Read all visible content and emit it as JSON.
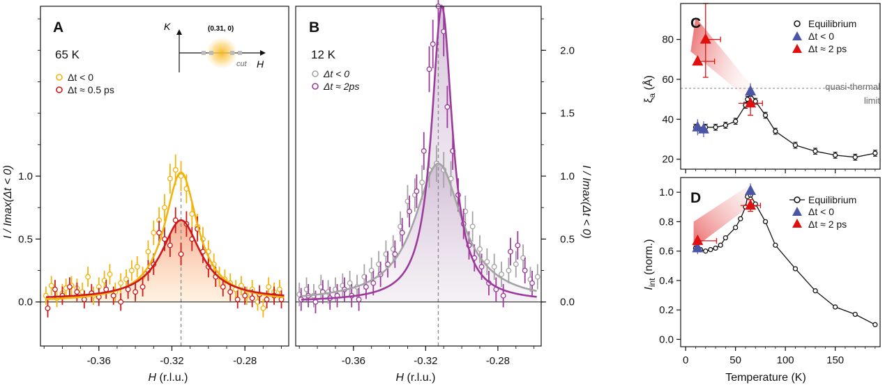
{
  "colors": {
    "yellow": "#f2b30a",
    "red": "#cf1717",
    "purple": "#9c3a9c",
    "gray": "#a3a3a3",
    "blue": "#4b55a6",
    "tri_red": "#e01010",
    "black": "#111111"
  },
  "chart_data": [
    {
      "id": "A",
      "type": "scatter",
      "panel_label": "A",
      "temperature_label": "65 K",
      "xlabel_var": "H",
      "xlabel_unit": " (r.l.u.)",
      "ylabel": "I / Imax(Δt < 0)",
      "xlim": [
        -0.392,
        -0.256
      ],
      "ylim": [
        -0.35,
        2.35
      ],
      "xticks": [
        -0.36,
        -0.32,
        -0.28
      ],
      "xtick_labels": [
        "-0.36",
        "-0.32",
        "-0.28"
      ],
      "yticks": [
        0.0,
        0.5,
        1.0
      ],
      "ytick_labels": [
        "0.0",
        "0.5",
        "1.0"
      ],
      "center_line_x": -0.315,
      "inset": {
        "k_label": "K",
        "h_label": "H",
        "point_label": "(0.31, 0)",
        "cut_label": "cut"
      },
      "legend": [
        "Δt < 0",
        "Δt ≈ 0.5 ps"
      ],
      "series": [
        {
          "name": "Δt < 0",
          "color_key": "yellow",
          "fit_amp": 1.03,
          "fit_center": -0.315,
          "fit_width": 0.011,
          "fit_bg": 0.0,
          "fill": false,
          "points": [
            [
              -0.389,
              0.05
            ],
            [
              -0.386,
              0.13
            ],
            [
              -0.383,
              0.03
            ],
            [
              -0.38,
              0.07
            ],
            [
              -0.378,
              0.11
            ],
            [
              -0.375,
              0.13
            ],
            [
              -0.372,
              0.11
            ],
            [
              -0.369,
              0.08
            ],
            [
              -0.366,
              0.2
            ],
            [
              -0.363,
              0.05
            ],
            [
              -0.36,
              0.12
            ],
            [
              -0.357,
              0.17
            ],
            [
              -0.354,
              0.22
            ],
            [
              -0.351,
              0.08
            ],
            [
              -0.348,
              0.15
            ],
            [
              -0.345,
              0.18
            ],
            [
              -0.342,
              0.25
            ],
            [
              -0.339,
              0.28
            ],
            [
              -0.336,
              0.2
            ],
            [
              -0.333,
              0.4
            ],
            [
              -0.33,
              0.55
            ],
            [
              -0.327,
              0.65
            ],
            [
              -0.324,
              0.75
            ],
            [
              -0.321,
              0.98
            ],
            [
              -0.318,
              1.05
            ],
            [
              -0.315,
              1.0
            ],
            [
              -0.312,
              0.9
            ],
            [
              -0.309,
              0.7
            ],
            [
              -0.306,
              0.6
            ],
            [
              -0.303,
              0.5
            ],
            [
              -0.3,
              0.4
            ],
            [
              -0.297,
              0.3
            ],
            [
              -0.294,
              0.2
            ],
            [
              -0.291,
              0.18
            ],
            [
              -0.288,
              0.15
            ],
            [
              -0.285,
              0.1
            ],
            [
              -0.282,
              0.13
            ],
            [
              -0.279,
              0.05
            ],
            [
              -0.276,
              0.1
            ],
            [
              -0.273,
              0.0
            ],
            [
              -0.27,
              -0.05
            ],
            [
              -0.267,
              0.12
            ],
            [
              -0.264,
              0.08
            ],
            [
              -0.261,
              0.1
            ]
          ]
        },
        {
          "name": "Δt ≈ 0.5 ps",
          "color_key": "red",
          "fit_amp": 0.63,
          "fit_center": -0.315,
          "fit_width": 0.013,
          "fit_bg": 0.02,
          "fill": true,
          "points": [
            [
              -0.388,
              -0.05
            ],
            [
              -0.384,
              0.1
            ],
            [
              -0.38,
              0.05
            ],
            [
              -0.376,
              0.12
            ],
            [
              -0.372,
              0.08
            ],
            [
              -0.368,
              0.02
            ],
            [
              -0.364,
              0.07
            ],
            [
              -0.36,
              0.04
            ],
            [
              -0.356,
              0.1
            ],
            [
              -0.352,
              0.05
            ],
            [
              -0.348,
              0.0
            ],
            [
              -0.344,
              0.1
            ],
            [
              -0.34,
              0.08
            ],
            [
              -0.336,
              0.12
            ],
            [
              -0.333,
              0.25
            ],
            [
              -0.33,
              0.3
            ],
            [
              -0.327,
              0.55
            ],
            [
              -0.324,
              0.5
            ],
            [
              -0.321,
              0.45
            ],
            [
              -0.318,
              0.65
            ],
            [
              -0.315,
              0.38
            ],
            [
              -0.312,
              0.62
            ],
            [
              -0.309,
              0.5
            ],
            [
              -0.306,
              0.58
            ],
            [
              -0.303,
              0.4
            ],
            [
              -0.3,
              0.28
            ],
            [
              -0.296,
              0.2
            ],
            [
              -0.292,
              0.12
            ],
            [
              -0.288,
              0.08
            ],
            [
              -0.284,
              0.02
            ],
            [
              -0.28,
              0.05
            ],
            [
              -0.276,
              0.03
            ],
            [
              -0.272,
              0.06
            ],
            [
              -0.268,
              0.02
            ],
            [
              -0.264,
              0.05
            ],
            [
              -0.26,
              0.02
            ]
          ]
        }
      ]
    },
    {
      "id": "B",
      "type": "scatter",
      "panel_label": "B",
      "temperature_label": "12 K",
      "xlabel_var": "H",
      "xlabel_unit": " (r.l.u.)",
      "ylabel": "I / Imax(Δt < 0)",
      "xlim": [
        -0.392,
        -0.256
      ],
      "ylim": [
        -0.35,
        2.35
      ],
      "xticks": [
        -0.36,
        -0.32,
        -0.28
      ],
      "xtick_labels": [
        "-0.36",
        "-0.32",
        "-0.28"
      ],
      "yticks": [
        0.0,
        0.5,
        1.0,
        1.5,
        2.0
      ],
      "ytick_labels": [
        "0.0",
        "0.5",
        "1.0",
        "1.5",
        "2.0"
      ],
      "center_line_x": -0.313,
      "legend": [
        "Δt < 0",
        "Δt ≈ 2ps"
      ],
      "series": [
        {
          "name": "Δt < 0",
          "color_key": "gray",
          "fit_amp": 1.1,
          "fit_center": -0.313,
          "fit_width": 0.016,
          "fit_bg": 0.0,
          "fill": true,
          "points": [
            [
              -0.39,
              0.06
            ],
            [
              -0.386,
              0.1
            ],
            [
              -0.382,
              0.05
            ],
            [
              -0.378,
              0.12
            ],
            [
              -0.374,
              0.08
            ],
            [
              -0.37,
              0.1
            ],
            [
              -0.366,
              0.13
            ],
            [
              -0.362,
              0.15
            ],
            [
              -0.358,
              0.12
            ],
            [
              -0.354,
              0.2
            ],
            [
              -0.35,
              0.25
            ],
            [
              -0.346,
              0.3
            ],
            [
              -0.342,
              0.38
            ],
            [
              -0.338,
              0.42
            ],
            [
              -0.334,
              0.6
            ],
            [
              -0.33,
              0.8
            ],
            [
              -0.326,
              0.85
            ],
            [
              -0.322,
              0.95
            ],
            [
              -0.318,
              1.05
            ],
            [
              -0.314,
              1.1
            ],
            [
              -0.31,
              1.05
            ],
            [
              -0.306,
              0.98
            ],
            [
              -0.302,
              0.85
            ],
            [
              -0.298,
              0.72
            ],
            [
              -0.294,
              0.6
            ],
            [
              -0.29,
              0.42
            ],
            [
              -0.286,
              0.32
            ],
            [
              -0.282,
              0.28
            ],
            [
              -0.278,
              0.22
            ],
            [
              -0.274,
              0.25
            ],
            [
              -0.27,
              0.3
            ],
            [
              -0.266,
              0.35
            ],
            [
              -0.262,
              0.18
            ],
            [
              -0.258,
              0.2
            ]
          ]
        },
        {
          "name": "Δt ≈ 2ps",
          "color_key": "purple",
          "fit_amp": 2.35,
          "fit_center": -0.311,
          "fit_width": 0.007,
          "fit_bg": 0.0,
          "fill": true,
          "points": [
            [
              -0.389,
              0.02
            ],
            [
              -0.385,
              0.05
            ],
            [
              -0.381,
              0.0
            ],
            [
              -0.377,
              0.08
            ],
            [
              -0.373,
              0.03
            ],
            [
              -0.369,
              0.05
            ],
            [
              -0.365,
              0.1
            ],
            [
              -0.361,
              0.05
            ],
            [
              -0.357,
              0.02
            ],
            [
              -0.353,
              0.12
            ],
            [
              -0.349,
              0.15
            ],
            [
              -0.345,
              0.22
            ],
            [
              -0.341,
              0.3
            ],
            [
              -0.337,
              0.38
            ],
            [
              -0.333,
              0.55
            ],
            [
              -0.329,
              0.72
            ],
            [
              -0.325,
              0.88
            ],
            [
              -0.321,
              1.2
            ],
            [
              -0.318,
              1.85
            ],
            [
              -0.316,
              2.05
            ],
            [
              -0.313,
              2.35
            ],
            [
              -0.31,
              2.15
            ],
            [
              -0.308,
              1.55
            ],
            [
              -0.305,
              1.2
            ],
            [
              -0.302,
              0.85
            ],
            [
              -0.299,
              0.62
            ],
            [
              -0.296,
              0.45
            ],
            [
              -0.293,
              0.35
            ],
            [
              -0.289,
              0.28
            ],
            [
              -0.285,
              0.15
            ],
            [
              -0.281,
              0.1
            ],
            [
              -0.277,
              0.05
            ],
            [
              -0.273,
              0.4
            ],
            [
              -0.269,
              0.45
            ],
            [
              -0.265,
              0.25
            ],
            [
              -0.261,
              0.15
            ]
          ]
        }
      ]
    },
    {
      "id": "C",
      "type": "scatter",
      "panel_label": "C",
      "xlim": [
        -5,
        195
      ],
      "ylim": [
        15,
        98
      ],
      "yticks": [
        20,
        40,
        60,
        80
      ],
      "ytick_labels": [
        "20",
        "40",
        "60",
        "80"
      ],
      "ylabel_sym": "ξ",
      "ylabel_sub": "a",
      "ylabel_unit": " (Å)",
      "hline_y": 55.5,
      "hline_label_top": "quasi-thermal",
      "hline_label_bottom": "limit",
      "legend": [
        "Equilibrium",
        "Δt < 0",
        "Δt ≈ 2 ps"
      ],
      "equilibrium": {
        "x": [
          10,
          20,
          30,
          40,
          50,
          60,
          62,
          65,
          70,
          80,
          90,
          110,
          130,
          150,
          170,
          190
        ],
        "y": [
          36,
          36,
          36,
          37,
          39,
          47,
          50,
          53,
          49,
          42,
          34,
          27,
          24,
          22,
          21,
          23
        ]
      },
      "dt_neg": [
        {
          "x": 12,
          "y": 36
        },
        {
          "x": 18,
          "y": 35
        },
        {
          "x": 65,
          "y": 54
        }
      ],
      "dt_pos": [
        {
          "x": 12,
          "y": 69
        },
        {
          "x": 20,
          "y": 80
        },
        {
          "x": 65,
          "y": 48
        }
      ]
    },
    {
      "id": "D",
      "type": "scatter",
      "panel_label": "D",
      "xlim": [
        -5,
        195
      ],
      "ylim": [
        -0.05,
        1.1
      ],
      "xticks": [
        0,
        50,
        100,
        150
      ],
      "xtick_labels": [
        "0",
        "50",
        "100",
        "150"
      ],
      "yticks": [
        0.0,
        0.2,
        0.4,
        0.6,
        0.8,
        1.0
      ],
      "ytick_labels": [
        "0.0",
        "0.2",
        "0.4",
        "0.6",
        "0.8",
        "1.0"
      ],
      "xlabel": "Temperature (K)",
      "ylabel_sym": "I",
      "ylabel_sub": "int",
      "ylabel_unit": " (norm.)",
      "legend": [
        "Equilibrium",
        "Δt < 0",
        "Δt ≈ 2 ps"
      ],
      "equilibrium": {
        "x": [
          10,
          15,
          20,
          25,
          30,
          35,
          40,
          50,
          55,
          60,
          62,
          65,
          70,
          80,
          90,
          110,
          130,
          150,
          170,
          190
        ],
        "y": [
          0.62,
          0.61,
          0.6,
          0.61,
          0.62,
          0.64,
          0.69,
          0.76,
          0.82,
          0.9,
          0.97,
          0.98,
          0.92,
          0.8,
          0.64,
          0.48,
          0.33,
          0.22,
          0.17,
          0.1
        ]
      },
      "dt_neg": [
        {
          "x": 12,
          "y": 0.62
        },
        {
          "x": 65,
          "y": 1.01
        }
      ],
      "dt_pos": [
        {
          "x": 12,
          "y": 0.67
        },
        {
          "x": 65,
          "y": 0.91
        }
      ]
    }
  ]
}
